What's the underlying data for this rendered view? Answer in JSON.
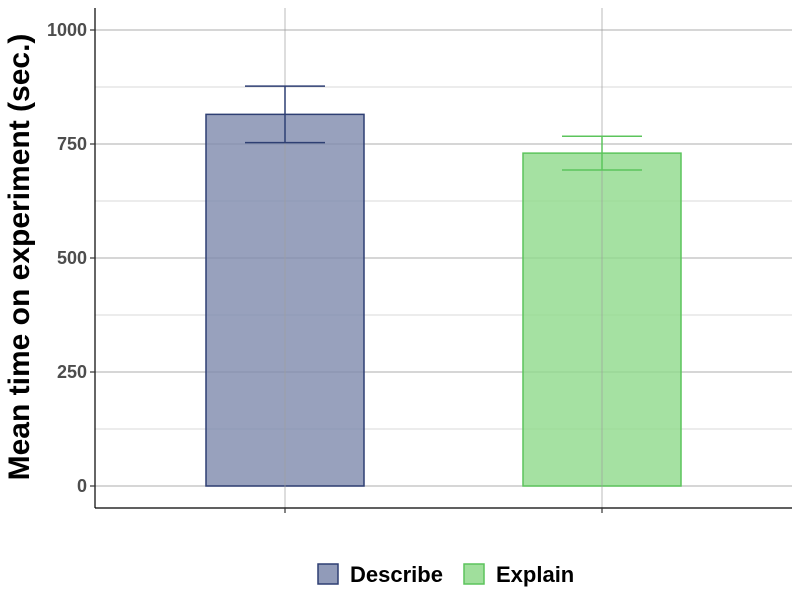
{
  "chart_data": {
    "type": "bar",
    "categories": [
      "Describe",
      "Explain"
    ],
    "values": [
      815,
      730
    ],
    "error_bars": [
      {
        "low": 753,
        "high": 877
      },
      {
        "low": 693,
        "high": 767
      }
    ],
    "ylabel": "Mean time on experiment (sec.)",
    "xlabel": "",
    "ylim": [
      0,
      1050
    ],
    "yticks": [
      0,
      250,
      500,
      750,
      1000
    ],
    "grid": true,
    "legend_position": "bottom",
    "legend": [
      {
        "label": "Describe",
        "color": "#7e89ad"
      },
      {
        "label": "Explain",
        "color": "#8fd98b"
      }
    ],
    "colors": {
      "describe_fill": "#7e89ad",
      "describe_stroke": "#2e3f73",
      "explain_fill": "#8fd98b",
      "explain_stroke": "#5cc45c"
    }
  }
}
